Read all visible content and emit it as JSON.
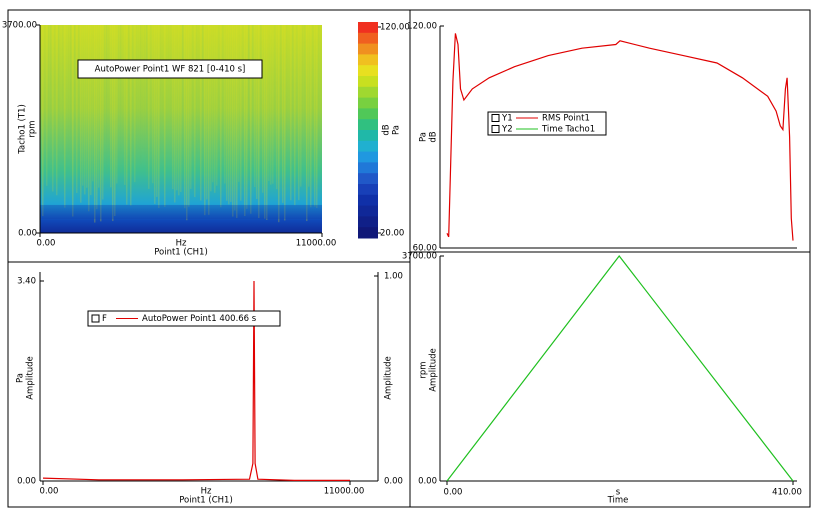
{
  "chart_data": [
    {
      "type": "heatmap",
      "legend": "AutoPower Point1 WF 821 [0-410 s]",
      "x_unit": "Hz",
      "x_label": "Point1 (CH1)",
      "y_label": "Tacho1 (T1)",
      "y_unit": "rpm",
      "xlim": [
        0,
        11000
      ],
      "xticks": [
        {
          "value": 0,
          "label": "0.00"
        },
        {
          "value": 11000,
          "label": "11000.00"
        }
      ],
      "ylim": [
        0,
        3700
      ],
      "yticks": [
        {
          "value": 0,
          "label": "0.00"
        },
        {
          "value": 3700,
          "label": "3700.00"
        }
      ],
      "colorbar": {
        "lim": [
          20,
          120
        ],
        "ticks": [
          {
            "value": 20,
            "label": "20.00"
          },
          {
            "value": 120,
            "label": "120.00"
          }
        ],
        "unit": "dB",
        "quantity": "Pa"
      }
    },
    {
      "type": "line",
      "y_label": "Pa",
      "y_unit": "dB",
      "x": [
        0,
        2,
        4,
        7,
        10,
        13,
        16,
        20,
        30,
        50,
        80,
        120,
        160,
        200,
        205,
        240,
        280,
        320,
        350,
        380,
        390,
        395,
        398,
        401,
        403,
        406,
        408,
        410
      ],
      "xlim": [
        0,
        410
      ],
      "series": [
        {
          "key": "Y1",
          "name": "RMS Point1",
          "color": "#e00000",
          "values": [
            64,
            63,
            80,
            105,
            118,
            115,
            103,
            100,
            103,
            106,
            109,
            112,
            114,
            115,
            116,
            114,
            112,
            110,
            106,
            101,
            97,
            93,
            92,
            103,
            106,
            90,
            68,
            62
          ]
        }
      ],
      "ylim": [
        60,
        120
      ],
      "yticks": [
        {
          "value": 60,
          "label": "60.00"
        },
        {
          "value": 120,
          "label": "120.00"
        }
      ]
    },
    {
      "type": "line",
      "y_label": "Pa",
      "y_unit": "Amplitude",
      "y2_unit": "Amplitude",
      "x_unit": "Hz",
      "x_label": "Point1 (CH1)",
      "x": [
        0,
        2000,
        5000,
        7400,
        7520,
        7560,
        7600,
        7700,
        9000,
        11000
      ],
      "xlim": [
        0,
        11000
      ],
      "xticks": [
        {
          "value": 0,
          "label": "0.00"
        },
        {
          "value": 11000,
          "label": "11000.00"
        }
      ],
      "series": [
        {
          "key": "F",
          "name": "AutoPower Point1 400.66 s",
          "color": "#e00000",
          "values": [
            0.05,
            0.02,
            0.02,
            0.03,
            0.3,
            3.4,
            0.3,
            0.03,
            0.01,
            0.01
          ]
        }
      ],
      "ylim": [
        0,
        3.4
      ],
      "yticks": [
        {
          "value": 0,
          "label": "0.00"
        },
        {
          "value": 3.4,
          "label": "3.40"
        }
      ],
      "y2lim": [
        0,
        1
      ],
      "y2ticks": [
        {
          "value": 0,
          "label": "0.00"
        },
        {
          "value": 1,
          "label": "1.00"
        }
      ]
    },
    {
      "type": "line",
      "y_label": "rpm",
      "y_unit": "Amplitude",
      "x_unit": "s",
      "x_label": "Time",
      "x": [
        0,
        204,
        410
      ],
      "xlim": [
        0,
        410
      ],
      "xticks": [
        {
          "value": 0,
          "label": "0.00"
        },
        {
          "value": 410,
          "label": "410.00"
        }
      ],
      "series": [
        {
          "key": "Y2",
          "name": "Time Tacho1",
          "color": "#20c020",
          "values": [
            0,
            3700,
            0
          ]
        }
      ],
      "ylim": [
        0,
        3700
      ],
      "yticks": [
        {
          "value": 0,
          "label": "0.00"
        },
        {
          "value": 3700,
          "label": "3700.00"
        }
      ]
    }
  ]
}
